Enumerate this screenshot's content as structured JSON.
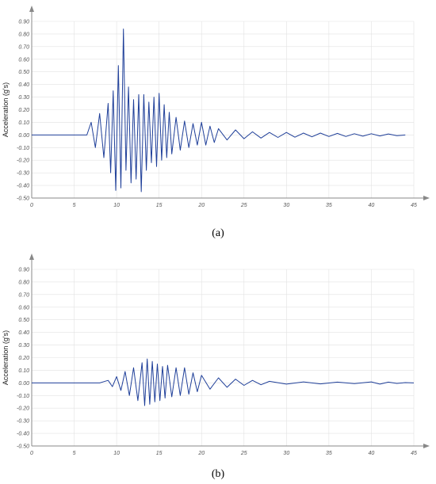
{
  "chart_data": [
    {
      "type": "line",
      "panel_label": "(a)",
      "xlabel": "Time (s)",
      "ylabel": "Acceleration (g's)",
      "xlim": [
        0,
        45
      ],
      "ylim": [
        -0.5,
        0.9
      ],
      "x_ticks": [
        0,
        5,
        10,
        15,
        20,
        25,
        30,
        35,
        40,
        45
      ],
      "y_ticks": [
        "-0.50",
        "-0.40",
        "-0.30",
        "-0.20",
        "-0.10",
        "0.00",
        "0.10",
        "0.20",
        "0.30",
        "0.40",
        "0.50",
        "0.60",
        "0.70",
        "0.80",
        "0.90"
      ],
      "grid": true,
      "line_color": "#1f3f99",
      "series": [
        {
          "x": [
            0,
            6.5,
            7,
            7.5,
            8,
            8.5,
            9,
            9.3,
            9.6,
            9.9,
            10.2,
            10.5,
            10.8,
            11.1,
            11.4,
            11.7,
            12,
            12.3,
            12.6,
            12.9,
            13.2,
            13.5,
            13.8,
            14.1,
            14.4,
            14.7,
            15,
            15.3,
            15.6,
            15.9,
            16.2,
            16.5,
            17,
            17.5,
            18,
            18.5,
            19,
            19.5,
            20,
            20.5,
            21,
            21.5,
            22,
            23,
            24,
            25,
            26,
            27,
            28,
            29,
            30,
            31,
            32,
            33,
            34,
            35,
            36,
            37,
            38,
            39,
            40,
            41,
            42,
            43,
            44
          ],
          "y": [
            0,
            0,
            0.1,
            -0.1,
            0.17,
            -0.18,
            0.25,
            -0.3,
            0.35,
            -0.44,
            0.55,
            -0.42,
            0.84,
            -0.28,
            0.38,
            -0.38,
            0.28,
            -0.35,
            0.32,
            -0.45,
            0.32,
            -0.28,
            0.26,
            -0.22,
            0.3,
            -0.25,
            0.33,
            -0.2,
            0.24,
            -0.18,
            0.18,
            -0.15,
            0.14,
            -0.12,
            0.11,
            -0.1,
            0.09,
            -0.08,
            0.1,
            -0.08,
            0.07,
            -0.06,
            0.05,
            -0.04,
            0.04,
            -0.03,
            0.025,
            -0.025,
            0.02,
            -0.02,
            0.02,
            -0.018,
            0.015,
            -0.015,
            0.015,
            -0.012,
            0.012,
            -0.012,
            0.01,
            -0.01,
            0.01,
            -0.008,
            0.008,
            -0.006,
            0
          ]
        }
      ]
    },
    {
      "type": "line",
      "panel_label": "(b)",
      "xlabel": "Time (s)",
      "ylabel": "Acceleration (g's)",
      "xlim": [
        0,
        45
      ],
      "ylim": [
        -0.5,
        0.9
      ],
      "x_ticks": [
        0,
        5,
        10,
        15,
        20,
        25,
        30,
        35,
        40,
        45
      ],
      "y_ticks": [
        "-0.50",
        "-0.40",
        "-0.30",
        "-0.20",
        "-0.10",
        "0.00",
        "0.10",
        "0.20",
        "0.30",
        "0.40",
        "0.50",
        "0.60",
        "0.70",
        "0.80",
        "0.90"
      ],
      "grid": true,
      "line_color": "#1f3f99",
      "series": [
        {
          "x": [
            0,
            8,
            9,
            9.5,
            10,
            10.5,
            11,
            11.5,
            12,
            12.5,
            13,
            13.3,
            13.6,
            13.9,
            14.2,
            14.5,
            14.8,
            15.1,
            15.4,
            15.7,
            16,
            16.5,
            17,
            17.5,
            18,
            18.5,
            19,
            19.5,
            20,
            21,
            22,
            23,
            24,
            25,
            26,
            27,
            28,
            30,
            32,
            34,
            36,
            38,
            40,
            41,
            42,
            43,
            44,
            45
          ],
          "y": [
            0,
            0,
            0.02,
            -0.03,
            0.05,
            -0.06,
            0.09,
            -0.1,
            0.12,
            -0.14,
            0.16,
            -0.18,
            0.19,
            -0.17,
            0.17,
            -0.15,
            0.15,
            -0.14,
            0.13,
            -0.12,
            0.14,
            -0.11,
            0.12,
            -0.1,
            0.12,
            -0.09,
            0.08,
            -0.07,
            0.06,
            -0.05,
            0.04,
            -0.035,
            0.03,
            -0.02,
            0.02,
            -0.015,
            0.012,
            -0.01,
            0.008,
            -0.008,
            0.006,
            -0.006,
            0.008,
            -0.01,
            0.006,
            -0.004,
            0.002,
            0
          ]
        }
      ]
    }
  ]
}
